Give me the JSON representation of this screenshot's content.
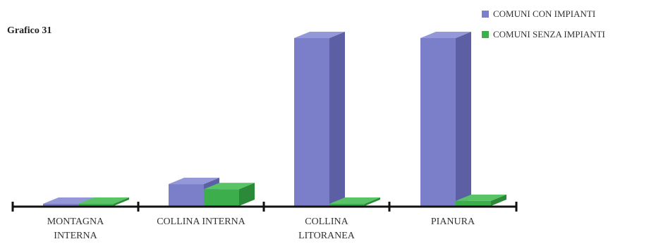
{
  "chart_label": "Grafico 31",
  "chart_data": {
    "type": "bar",
    "categories": [
      [
        "MONTAGNA",
        "INTERNA"
      ],
      [
        "COLLINA INTERNA"
      ],
      [
        "COLLINA",
        "LITORANEA"
      ],
      [
        "PIANURA"
      ]
    ],
    "series": [
      {
        "name": "COMUNI CON IMPIANTI",
        "color": "#7b7fc9",
        "side_color": "#5c5fa3",
        "top_color": "#9598d8",
        "values": [
          0,
          13,
          100,
          100
        ]
      },
      {
        "name": "COMUNI SENZA IMPIANTI",
        "color": "#3cae4b",
        "side_color": "#2a8a37",
        "top_color": "#58c466",
        "values": [
          0,
          10,
          0,
          3
        ]
      }
    ],
    "ylim": [
      0,
      100
    ],
    "grid": false,
    "legend": "top-right"
  }
}
